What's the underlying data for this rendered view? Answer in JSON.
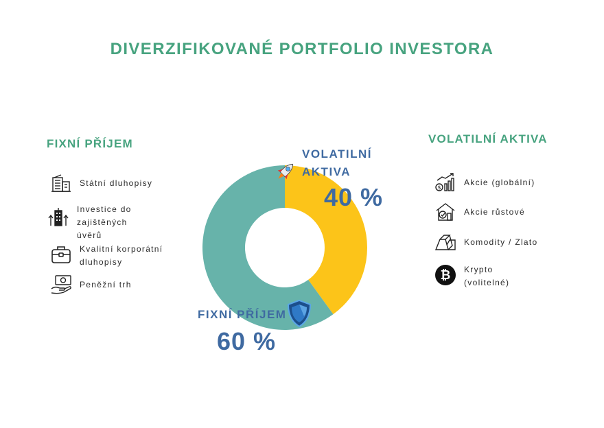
{
  "title": "DIVERZIFIKOVANÉ PORTFOLIO INVESTORA",
  "left": {
    "heading": "FIXNÍ PŘÍJEM",
    "items": [
      {
        "label": "Státní dluhopisy",
        "icon": "government-building-icon"
      },
      {
        "label": "Investice do\nzajištěných\núvěrů",
        "icon": "skyscraper-arrows-icon"
      },
      {
        "label": "Kvalitní korporátní\ndluhopisy",
        "icon": "briefcase-icon"
      },
      {
        "label": "Peněžní trh",
        "icon": "money-hand-icon"
      }
    ]
  },
  "right": {
    "heading": "VOLATILNÍ AKTIVA",
    "items": [
      {
        "label": "Akcie (globální)",
        "icon": "growth-chart-icon"
      },
      {
        "label": "Akcie růstové",
        "icon": "house-growth-icon"
      },
      {
        "label": "Komodity / Zlato",
        "icon": "gold-bars-icon"
      },
      {
        "label": "Krypto\n(volitelné)",
        "icon": "bitcoin-icon"
      }
    ]
  },
  "chart_data": {
    "type": "pie",
    "hole": true,
    "slices": [
      {
        "label": "VOLATILNÍ\nAKTIVA",
        "value": 40,
        "value_label": "40 %",
        "color": "#fcc419",
        "icon": "rocket-icon"
      },
      {
        "label": "FIXNÍ PŘÍJEM",
        "value": 60,
        "value_label": "60 %",
        "color": "#67b3aa",
        "icon": "shield-icon"
      }
    ]
  }
}
